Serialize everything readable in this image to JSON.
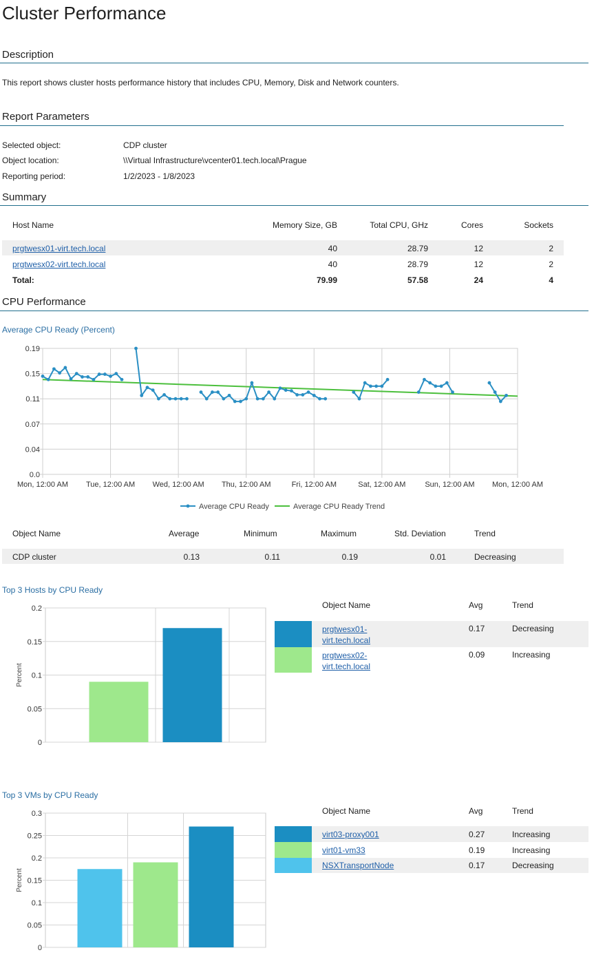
{
  "page": {
    "title": "Cluster Performance"
  },
  "description": {
    "heading": "Description",
    "text": "This report shows cluster hosts performance history that includes CPU, Memory, Disk and Network counters."
  },
  "parameters": {
    "heading": "Report Parameters",
    "rows": [
      {
        "label": "Selected object:",
        "value": "CDP cluster"
      },
      {
        "label": "Object location:",
        "value": "\\\\Virtual Infrastructure\\vcenter01.tech.local\\Prague"
      },
      {
        "label": "Reporting period:",
        "value": "1/2/2023 - 1/8/2023"
      }
    ]
  },
  "summary": {
    "heading": "Summary",
    "columns": [
      "Host Name",
      "Memory Size, GB",
      "Total CPU, GHz",
      "Cores",
      "Sockets"
    ],
    "rows": [
      {
        "host": "prgtwesx01-virt.tech.local",
        "memory": "40",
        "cpu": "28.79",
        "cores": "12",
        "sockets": "2"
      },
      {
        "host": "prgtwesx02-virt.tech.local",
        "memory": "40",
        "cpu": "28.79",
        "cores": "12",
        "sockets": "2"
      }
    ],
    "total": {
      "label": "Total:",
      "memory": "79.99",
      "cpu": "57.58",
      "cores": "24",
      "sockets": "4"
    }
  },
  "cpu_performance": {
    "heading": "CPU Performance",
    "chart_title": "Average CPU Ready (Percent)",
    "stats_columns": [
      "Object Name",
      "Average",
      "Minimum",
      "Maximum",
      "Std. Deviation",
      "Trend"
    ],
    "stats_row": {
      "name": "CDP cluster",
      "average": "0.13",
      "minimum": "0.11",
      "maximum": "0.19",
      "std": "0.01",
      "trend": "Decreasing"
    }
  },
  "top_hosts": {
    "title": "Top 3 Hosts by CPU Ready",
    "columns": [
      "Object Name",
      "Avg",
      "Trend"
    ],
    "rows": [
      {
        "name": "prgtwesx01-virt.tech.local",
        "name_l1": "prgtwesx01-",
        "name_l2": "virt.tech.local",
        "avg": "0.17",
        "trend": "Decreasing",
        "color": "#1b8ec2"
      },
      {
        "name": "prgtwesx02-virt.tech.local",
        "name_l1": "prgtwesx02-",
        "name_l2": "virt.tech.local",
        "avg": "0.09",
        "trend": "Increasing",
        "color": "#9ee88c"
      }
    ]
  },
  "top_vms": {
    "title": "Top 3 VMs by CPU Ready",
    "columns": [
      "Object Name",
      "Avg",
      "Trend"
    ],
    "rows": [
      {
        "name": "virt03-proxy001",
        "avg": "0.27",
        "trend": "Increasing",
        "color": "#1b8ec2"
      },
      {
        "name": "virt01-vm33",
        "avg": "0.19",
        "trend": "Increasing",
        "color": "#9ee88c"
      },
      {
        "name": "NSXTransportNode",
        "avg": "0.17",
        "trend": "Decreasing",
        "color": "#4fc3ec"
      }
    ]
  },
  "chart_data": [
    {
      "type": "line",
      "title": "Average CPU Ready (Percent)",
      "x_tick_labels": [
        "Mon, 12:00 AM",
        "Tue, 12:00 AM",
        "Wed, 12:00 AM",
        "Thu, 12:00 AM",
        "Fri, 12:00 AM",
        "Sat, 12:00 AM",
        "Sun, 12:00 AM",
        "Mon, 12:00 AM"
      ],
      "y_tick_labels": [
        "0.0",
        "0.04",
        "0.07",
        "0.11",
        "0.15",
        "0.19"
      ],
      "xlim": [
        0,
        168
      ],
      "ylim": [
        0,
        0.19
      ],
      "grid": true,
      "legend": "bottom",
      "colors": {
        "line": "#2a8fc4",
        "trend": "#4bbf3c",
        "grid": "#cfcfcf"
      },
      "series": [
        {
          "name": "Average CPU Ready",
          "segments": [
            [
              [
                0,
                0.148
              ],
              [
                2,
                0.143
              ],
              [
                4,
                0.159
              ],
              [
                6,
                0.153
              ],
              [
                8,
                0.161
              ],
              [
                10,
                0.144
              ],
              [
                12,
                0.152
              ],
              [
                14,
                0.147
              ],
              [
                16,
                0.147
              ],
              [
                18,
                0.143
              ],
              [
                20,
                0.151
              ],
              [
                22,
                0.151
              ],
              [
                24,
                0.148
              ],
              [
                26,
                0.152
              ],
              [
                28,
                0.143
              ]
            ],
            [
              [
                33,
                0.19
              ],
              [
                35,
                0.119
              ],
              [
                37,
                0.131
              ],
              [
                39,
                0.127
              ],
              [
                41,
                0.114
              ],
              [
                43,
                0.12
              ],
              [
                45,
                0.114
              ],
              [
                47,
                0.114
              ],
              [
                49,
                0.114
              ],
              [
                51,
                0.114
              ]
            ],
            [
              [
                56,
                0.124
              ],
              [
                58,
                0.114
              ],
              [
                60,
                0.124
              ],
              [
                62,
                0.124
              ],
              [
                64,
                0.114
              ],
              [
                66,
                0.119
              ],
              [
                68,
                0.11
              ],
              [
                70,
                0.11
              ],
              [
                72,
                0.114
              ],
              [
                74,
                0.138
              ],
              [
                76,
                0.114
              ],
              [
                78,
                0.114
              ],
              [
                80,
                0.124
              ],
              [
                82,
                0.114
              ],
              [
                84,
                0.13
              ],
              [
                86,
                0.127
              ],
              [
                88,
                0.126
              ],
              [
                90,
                0.12
              ],
              [
                92,
                0.12
              ],
              [
                94,
                0.124
              ],
              [
                96,
                0.119
              ],
              [
                98,
                0.114
              ],
              [
                100,
                0.114
              ]
            ],
            [
              [
                110,
                0.124
              ],
              [
                112,
                0.114
              ],
              [
                114,
                0.138
              ],
              [
                116,
                0.133
              ],
              [
                118,
                0.133
              ],
              [
                120,
                0.133
              ],
              [
                122,
                0.143
              ]
            ],
            [
              [
                133,
                0.124
              ],
              [
                135,
                0.143
              ],
              [
                137,
                0.138
              ],
              [
                139,
                0.133
              ],
              [
                141,
                0.133
              ],
              [
                143,
                0.138
              ],
              [
                145,
                0.124
              ]
            ],
            [
              [
                158,
                0.138
              ],
              [
                160,
                0.124
              ],
              [
                162,
                0.11
              ],
              [
                164,
                0.119
              ]
            ]
          ]
        },
        {
          "name": "Average CPU Ready Trend",
          "points": [
            [
              0,
              0.143
            ],
            [
              168,
              0.118
            ]
          ]
        }
      ]
    },
    {
      "type": "bar",
      "title": "Top 3 Hosts by CPU Ready",
      "ylabel": "Percent",
      "ylim": [
        0,
        0.2
      ],
      "y_tick_labels": [
        "0",
        "0.05",
        "0.1",
        "0.15",
        "0.2"
      ],
      "categories": [
        "prgtwesx02-virt.tech.local",
        "prgtwesx01-virt.tech.local"
      ],
      "values": [
        0.09,
        0.17
      ],
      "colors": [
        "#9ee88c",
        "#1b8ec2"
      ]
    },
    {
      "type": "bar",
      "title": "Top 3 VMs by CPU Ready",
      "ylabel": "Percent",
      "ylim": [
        0,
        0.3
      ],
      "y_tick_labels": [
        "0",
        "0.05",
        "0.1",
        "0.15",
        "0.2",
        "0.25",
        "0.3"
      ],
      "categories": [
        "NSXTransportNode",
        "virt01-vm33",
        "virt03-proxy001"
      ],
      "values": [
        0.175,
        0.19,
        0.27
      ],
      "colors": [
        "#4fc3ec",
        "#9ee88c",
        "#1b8ec2"
      ]
    }
  ]
}
